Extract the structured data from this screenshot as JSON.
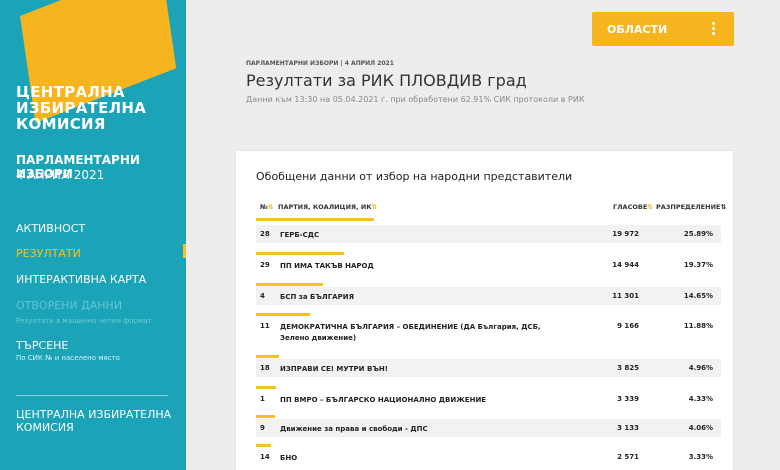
{
  "sidebar": {
    "logo_lines": [
      "ЦЕНТРАЛНА",
      "ИЗБИРАТЕЛНА",
      "КОМИСИЯ"
    ],
    "election_title": "ПАРЛАМЕНТАРНИ ИЗБОРИ",
    "election_date": "4 АПРИЛ 2021",
    "nav": [
      {
        "label": "АКТИВНОСТ"
      },
      {
        "label": "РЕЗУЛТАТИ"
      },
      {
        "label": "ИНТЕРАКТИВНА КАРТА"
      },
      {
        "label": "ОТВОРЕНИ ДАННИ",
        "sub": "Резултати в машинно четим формат"
      },
      {
        "label": "ТЪРСЕНЕ",
        "sub": "По СИК № и населено място"
      }
    ],
    "footer_lines": [
      "ЦЕНТРАЛНА ИЗБИРАТЕЛНА",
      "КОМИСИЯ"
    ],
    "accent_color": "#f6b51e",
    "bg_color": "#1ba3b8"
  },
  "header": {
    "regions_button": "ОБЛАСТИ",
    "menu_icon": "more-vertical-icon",
    "breadcrumb": "ПАРЛАМЕНТАРНИ ИЗБОРИ | 4 АПРИЛ 2021",
    "title": "Резултати за РИК ПЛОВДИВ град",
    "subtitle": "Данни към 13:30 на 05.04.2021 г. при обработени 62.91% СИК протоколи в РИК"
  },
  "results": {
    "heading": "Обобщени данни от избор на народни представители",
    "columns": {
      "no": "№",
      "party": "ПАРТИЯ, КОАЛИЦИЯ, ИК",
      "votes": "ГЛАСОВЕ",
      "distribution": "РАЗПРЕДЕЛЕНИЕ"
    },
    "rows": [
      {
        "no": "28",
        "party": "ГЕРБ-СДС",
        "votes": "19 972",
        "pct": "25.89%",
        "share": 25.89
      },
      {
        "no": "29",
        "party": "ПП ИМА ТАКЪВ НАРОД",
        "votes": "14 944",
        "pct": "19.37%",
        "share": 19.37
      },
      {
        "no": "4",
        "party": "БСП за БЪЛГАРИЯ",
        "votes": "11 301",
        "pct": "14.65%",
        "share": 14.65
      },
      {
        "no": "11",
        "party": "ДЕМОКРАТИЧНА БЪЛГАРИЯ – ОБЕДИНЕНИЕ (ДА България, ДСБ, Зелено движение)",
        "votes": "9 166",
        "pct": "11.88%",
        "share": 11.88
      },
      {
        "no": "18",
        "party": "ИЗПРАВИ СЕ! МУТРИ ВЪН!",
        "votes": "3 825",
        "pct": "4.96%",
        "share": 4.96
      },
      {
        "no": "1",
        "party": "ПП ВМРО – БЪЛГАРСКО НАЦИОНАЛНО ДВИЖЕНИЕ",
        "votes": "3 339",
        "pct": "4.33%",
        "share": 4.33
      },
      {
        "no": "9",
        "party": "Движение за права и свободи - ДПС",
        "votes": "3 133",
        "pct": "4.06%",
        "share": 4.06
      },
      {
        "no": "14",
        "party": "БНО",
        "votes": "2 571",
        "pct": "3.33%",
        "share": 3.33
      }
    ]
  }
}
